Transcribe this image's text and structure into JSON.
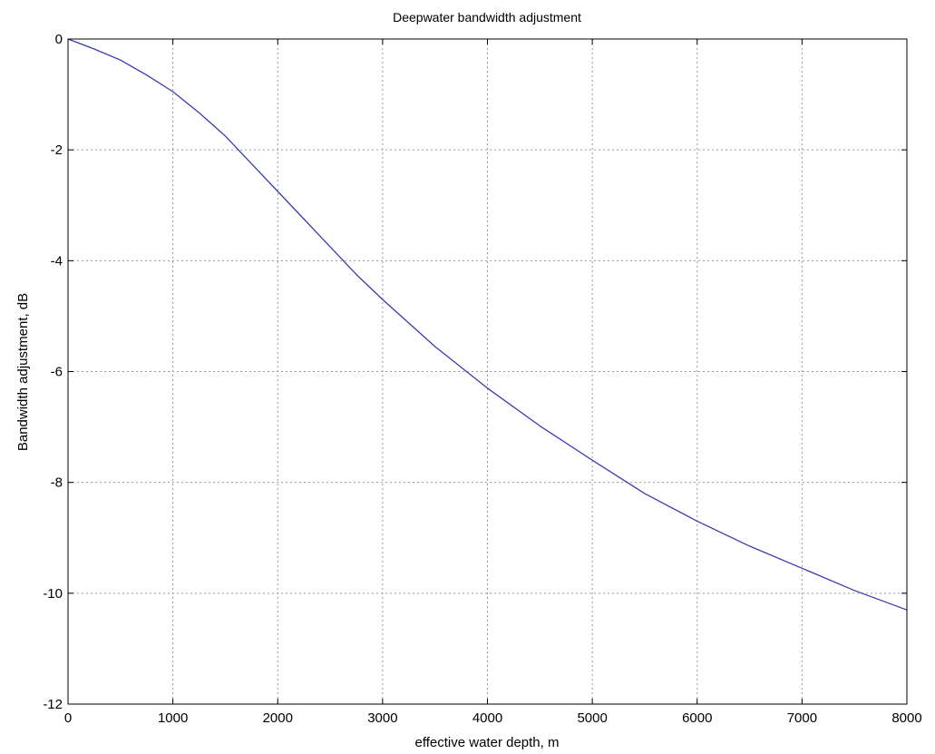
{
  "chart_data": {
    "type": "line",
    "title": "Deepwater bandwidth adjustment",
    "xlabel": "effective water depth, m",
    "ylabel": "Bandwidth adjustment, dB",
    "xlim": [
      0,
      8000
    ],
    "ylim": [
      -12,
      0
    ],
    "grid": true,
    "x_ticks": [
      "0",
      "1000",
      "2000",
      "3000",
      "4000",
      "5000",
      "6000",
      "7000",
      "8000"
    ],
    "y_ticks": [
      "0",
      "-2",
      "-4",
      "-6",
      "-8",
      "-10",
      "-12"
    ],
    "series": [
      {
        "color": "#3b3bb0",
        "x": [
          0,
          250,
          500,
          750,
          1000,
          1250,
          1500,
          1750,
          2000,
          2250,
          2500,
          2750,
          3000,
          3500,
          4000,
          4500,
          5000,
          5500,
          6000,
          6500,
          7000,
          7500,
          8000
        ],
        "y": [
          0,
          -0.18,
          -0.38,
          -0.65,
          -0.95,
          -1.33,
          -1.75,
          -2.25,
          -2.75,
          -3.25,
          -3.75,
          -4.25,
          -4.7,
          -5.55,
          -6.3,
          -6.98,
          -7.6,
          -8.2,
          -8.7,
          -9.15,
          -9.55,
          -9.95,
          -10.3
        ]
      }
    ]
  }
}
